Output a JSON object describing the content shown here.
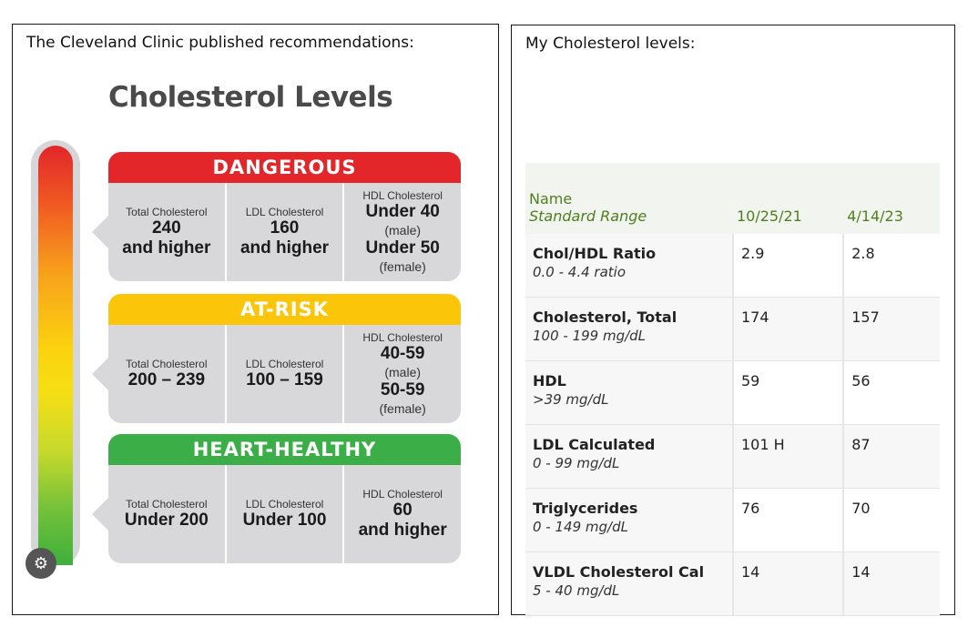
{
  "left": {
    "caption": "The Cleveland Clinic published recommendations:",
    "infographic": {
      "title": "Cholesterol Levels",
      "gauge_knob": "⚙",
      "bands": {
        "dangerous": {
          "header": "DANGEROUS",
          "color": "#e2262a",
          "total": {
            "label": "Total Cholesterol",
            "line1": "240",
            "line2": "and higher"
          },
          "ldl": {
            "label": "LDL Cholesterol",
            "line1": "160",
            "line2": "and higher"
          },
          "hdl": {
            "label": "HDL Cholesterol",
            "v1": "Under 40",
            "n1": "(male)",
            "v2": "Under 50",
            "n2": "(female)"
          }
        },
        "atrisk": {
          "header": "AT-RISK",
          "color": "#fbc60a",
          "total": {
            "label": "Total Cholesterol",
            "value": "200 – 239"
          },
          "ldl": {
            "label": "LDL Cholesterol",
            "value": "100 – 159"
          },
          "hdl": {
            "label": "HDL Cholesterol",
            "v1": "40-59",
            "n1": "(male)",
            "v2": "50-59",
            "n2": "(female)"
          }
        },
        "healthy": {
          "header": "HEART-HEALTHY",
          "color": "#3cae48",
          "total": {
            "label": "Total Cholesterol",
            "value": "Under 200"
          },
          "ldl": {
            "label": "LDL Cholesterol",
            "value": "Under 100"
          },
          "hdl": {
            "label": "HDL Cholesterol",
            "line1": "60",
            "line2": "and higher"
          }
        }
      }
    }
  },
  "right": {
    "caption": "My Cholesterol levels:",
    "table": {
      "headers": {
        "name": "Name",
        "standard_range": "Standard Range",
        "date1": "10/25/21",
        "date2": "4/14/23"
      },
      "rows": [
        {
          "test": "Chol/HDL Ratio",
          "range": "0.0 - 4.4 ratio",
          "v1": "2.9",
          "v2": "2.8"
        },
        {
          "test": "Cholesterol, Total",
          "range": "100 - 199 mg/dL",
          "v1": "174",
          "v2": "157"
        },
        {
          "test": "HDL",
          "range": ">39 mg/dL",
          "v1": "59",
          "v2": "56"
        },
        {
          "test": "LDL Calculated",
          "range": "0 - 99 mg/dL",
          "v1": "101 H",
          "v2": "87"
        },
        {
          "test": "Triglycerides",
          "range": "0 - 149 mg/dL",
          "v1": "76",
          "v2": "70"
        },
        {
          "test": "VLDL Cholesterol Cal",
          "range": "5 - 40 mg/dL",
          "v1": "14",
          "v2": "14"
        }
      ]
    }
  }
}
